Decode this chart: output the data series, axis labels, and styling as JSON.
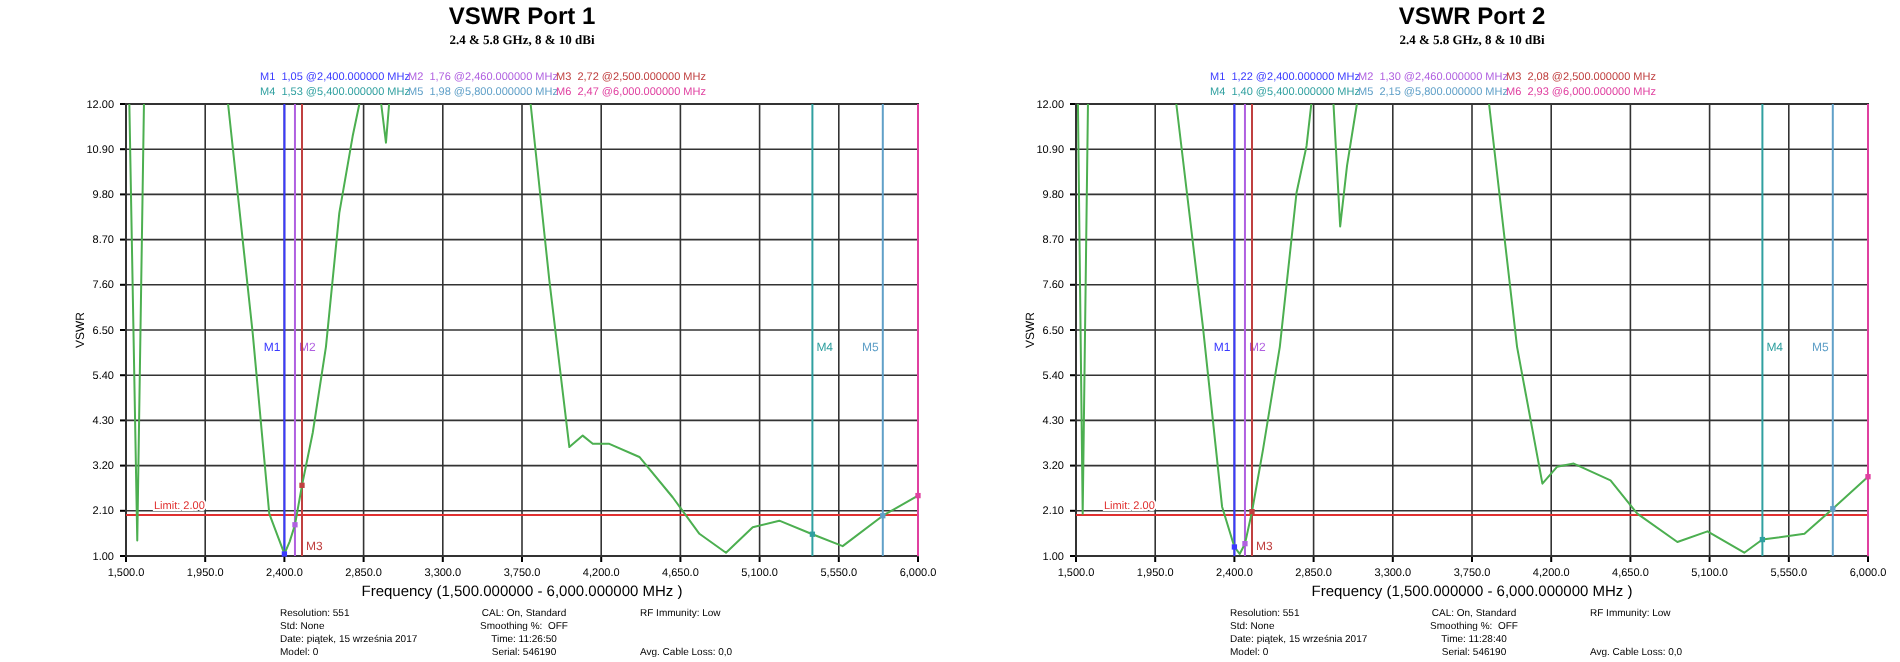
{
  "chart_data": [
    {
      "type": "line",
      "title": "VSWR Port 1",
      "subtitle": "2.4 & 5.8 GHz, 8 & 10 dBi",
      "xlabel": "Frequency (1,500.000000 - 6,000.000000 MHz )",
      "ylabel": "VSWR",
      "grid": true,
      "xlim": [
        1500,
        6000
      ],
      "ylim": [
        1,
        12
      ],
      "xticks": [
        {
          "value": 1500,
          "label": "1,500.0"
        },
        {
          "value": 1950,
          "label": "1,950.0"
        },
        {
          "value": 2400,
          "label": "2,400.0"
        },
        {
          "value": 2850,
          "label": "2,850.0"
        },
        {
          "value": 3300,
          "label": "3,300.0"
        },
        {
          "value": 3750,
          "label": "3,750.0"
        },
        {
          "value": 4200,
          "label": "4,200.0"
        },
        {
          "value": 4650,
          "label": "4,650.0"
        },
        {
          "value": 5100,
          "label": "5,100.0"
        },
        {
          "value": 5550,
          "label": "5,550.0"
        },
        {
          "value": 6000,
          "label": "6,000.0"
        }
      ],
      "yticks": [
        {
          "value": 1,
          "label": "1.00"
        },
        {
          "value": 2.1,
          "label": "2.10"
        },
        {
          "value": 3.2,
          "label": "3.20"
        },
        {
          "value": 4.3,
          "label": "4.30"
        },
        {
          "value": 5.4,
          "label": "5.40"
        },
        {
          "value": 6.5,
          "label": "6.50"
        },
        {
          "value": 7.6,
          "label": "7.60"
        },
        {
          "value": 8.7,
          "label": "8.70"
        },
        {
          "value": 9.8,
          "label": "9.80"
        },
        {
          "value": 10.9,
          "label": "10.90"
        },
        {
          "value": 12,
          "label": "12.00"
        }
      ],
      "series": [
        {
          "type": "line",
          "color": "#4caf50",
          "x": [
            1519,
            1564,
            1602,
            1800,
            2080,
            2220,
            2314,
            2400,
            2430,
            2460,
            2500,
            2561,
            2636,
            2712,
            2788,
            2826,
            2850,
            2950,
            2977,
            2995,
            3400,
            3799,
            3905,
            4019,
            4095,
            4152,
            4246,
            4417,
            4606,
            4758,
            4909,
            5061,
            5212,
            5400,
            5572,
            5800,
            6000
          ],
          "values": [
            12,
            1.38,
            12,
            null,
            12,
            6.42,
            2.03,
            1.05,
            1.35,
            1.76,
            2.72,
            4.0,
            6.09,
            9.35,
            11.22,
            12,
            null,
            12,
            11.06,
            12,
            null,
            12,
            7.72,
            3.65,
            3.93,
            3.73,
            3.73,
            3.41,
            2.43,
            1.54,
            1.08,
            1.7,
            1.86,
            1.53,
            1.24,
            1.98,
            2.47
          ]
        },
        {
          "type": "scatter",
          "marker": "square",
          "x": [
            2400,
            2460,
            2500,
            5400,
            5800,
            6000
          ],
          "values": [
            1.05,
            1.76,
            2.72,
            1.53,
            1.98,
            2.47
          ],
          "colors": [
            "#3a3aff",
            "#b060e0",
            "#c04040",
            "#30a0a0",
            "#60a0c8",
            "#e040a0"
          ]
        }
      ],
      "ref_lines": [
        {
          "axis": "y",
          "value": 2,
          "label": "Limit: 2.00",
          "color": "#e03030"
        },
        {
          "axis": "x",
          "value": 2400,
          "label": "M1",
          "color": "#3a3aff"
        },
        {
          "axis": "x",
          "value": 2460,
          "label": "M2",
          "color": "#b060e0"
        },
        {
          "axis": "x",
          "value": 2500,
          "label": "M3",
          "color": "#c04040"
        },
        {
          "axis": "x",
          "value": 5400,
          "label": "M4",
          "color": "#30a0a0"
        },
        {
          "axis": "x",
          "value": 5800,
          "label": "M5",
          "color": "#60a0c8"
        },
        {
          "axis": "x",
          "value": 6000,
          "label": null,
          "color": "#e040a0"
        }
      ],
      "annotations": [
        "M1  1,05 @2,400.000000 MHz",
        "M2  1,76 @2,460.000000 MHz",
        "M3  2,72 @2,500.000000 MHz",
        "M4  1,53 @5,400.000000 MHz",
        "M5  1,98 @5,800.000000 MHz",
        "M6  2,47 @6,000.000000 MHz",
        "Resolution: 551",
        "Std: None",
        "Date: piątek, 15 września 2017",
        "Model: 0",
        "CAL: On, Standard",
        "Smoothing %:  OFF",
        "Time: 11:26:50",
        "Serial: 546190",
        "RF Immunity: Low",
        "Avg. Cable Loss: 0,0"
      ]
    },
    {
      "type": "line",
      "title": "VSWR Port 2",
      "subtitle": "2.4 & 5.8 GHz, 8 & 10 dBi",
      "xlabel": "Frequency (1,500.000000 - 6,000.000000 MHz )",
      "ylabel": "VSWR",
      "grid": true,
      "xlim": [
        1500,
        6000
      ],
      "ylim": [
        1,
        12
      ],
      "xticks": [
        {
          "value": 1500,
          "label": "1,500.0"
        },
        {
          "value": 1950,
          "label": "1,950.0"
        },
        {
          "value": 2400,
          "label": "2,400.0"
        },
        {
          "value": 2850,
          "label": "2,850.0"
        },
        {
          "value": 3300,
          "label": "3,300.0"
        },
        {
          "value": 3750,
          "label": "3,750.0"
        },
        {
          "value": 4200,
          "label": "4,200.0"
        },
        {
          "value": 4650,
          "label": "4,650.0"
        },
        {
          "value": 5100,
          "label": "5,100.0"
        },
        {
          "value": 5550,
          "label": "5,550.0"
        },
        {
          "value": 6000,
          "label": "6,000.0"
        }
      ],
      "yticks": [
        {
          "value": 1,
          "label": "1.00"
        },
        {
          "value": 2.1,
          "label": "2.10"
        },
        {
          "value": 3.2,
          "label": "3.20"
        },
        {
          "value": 4.3,
          "label": "4.30"
        },
        {
          "value": 5.4,
          "label": "5.40"
        },
        {
          "value": 6.5,
          "label": "6.50"
        },
        {
          "value": 7.6,
          "label": "7.60"
        },
        {
          "value": 8.7,
          "label": "8.70"
        },
        {
          "value": 9.8,
          "label": "9.80"
        },
        {
          "value": 10.9,
          "label": "10.90"
        },
        {
          "value": 12,
          "label": "12.00"
        }
      ],
      "series": [
        {
          "type": "line",
          "color": "#4caf50",
          "x": [
            1511,
            1538,
            1568,
            1800,
            2070,
            2221,
            2330,
            2400,
            2430,
            2460,
            2500,
            2563,
            2658,
            2753,
            2810,
            2837,
            2900,
            2963,
            3001,
            3040,
            3096,
            3400,
            3847,
            4006,
            4150,
            4233,
            4328,
            4537,
            4689,
            4917,
            5088,
            5297,
            5400,
            5639,
            5800,
            6000
          ],
          "values": [
            12,
            2.03,
            12,
            null,
            12,
            6.58,
            2.2,
            1.22,
            1.05,
            1.3,
            2.08,
            3.6,
            6.09,
            9.84,
            10.98,
            12,
            null,
            12,
            9.02,
            10.5,
            12,
            null,
            12,
            6.09,
            2.76,
            3.17,
            3.25,
            2.84,
            2.03,
            1.34,
            1.6,
            1.08,
            1.4,
            1.54,
            2.15,
            2.93
          ]
        },
        {
          "type": "scatter",
          "marker": "square",
          "x": [
            2400,
            2460,
            2500,
            5400,
            5800,
            6000
          ],
          "values": [
            1.22,
            1.3,
            2.08,
            1.4,
            2.15,
            2.93
          ],
          "colors": [
            "#3a3aff",
            "#b060e0",
            "#c04040",
            "#30a0a0",
            "#60a0c8",
            "#e040a0"
          ]
        }
      ],
      "ref_lines": [
        {
          "axis": "y",
          "value": 2,
          "label": "Limit: 2.00",
          "color": "#e03030"
        },
        {
          "axis": "x",
          "value": 2400,
          "label": "M1",
          "color": "#3a3aff"
        },
        {
          "axis": "x",
          "value": 2460,
          "label": "M2",
          "color": "#b060e0"
        },
        {
          "axis": "x",
          "value": 2500,
          "label": "M3",
          "color": "#c04040"
        },
        {
          "axis": "x",
          "value": 5400,
          "label": "M4",
          "color": "#30a0a0"
        },
        {
          "axis": "x",
          "value": 5800,
          "label": "M5",
          "color": "#60a0c8"
        },
        {
          "axis": "x",
          "value": 6000,
          "label": null,
          "color": "#e040a0"
        }
      ],
      "annotations": [
        "M1  1,22 @2,400.000000 MHz",
        "M2  1,30 @2,460.000000 MHz",
        "M3  2,08 @2,500.000000 MHz",
        "M4  1,40 @5,400.000000 MHz",
        "M5  2,15 @5,800.000000 MHz",
        "M6  2,93 @6,000.000000 MHz",
        "Resolution: 551",
        "Std: None",
        "Date: piątek, 15 września 2017",
        "Model: 0",
        "CAL: On, Standard",
        "Smoothing %:  OFF",
        "Time: 11:28:40",
        "Serial: 546190",
        "RF Immunity: Low",
        "Avg. Cable Loss: 0,0"
      ]
    }
  ]
}
